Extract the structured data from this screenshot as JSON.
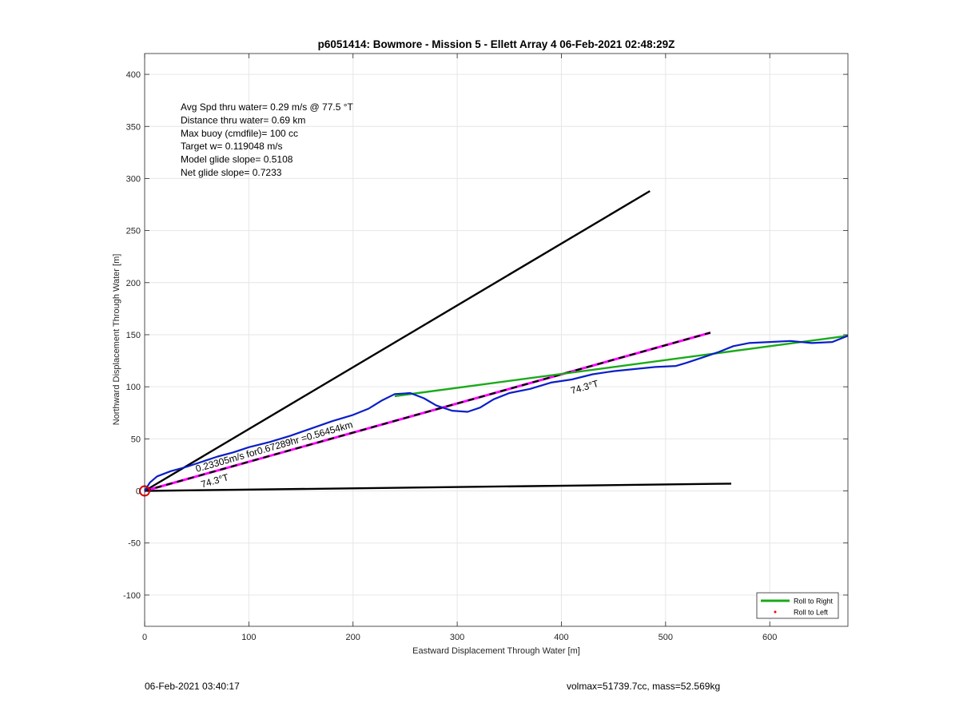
{
  "chart_data": {
    "type": "line",
    "title": "p6051414: Bowmore - Mission 5 - Ellett Array 4 06-Feb-2021 02:48:29Z",
    "xlabel": "Eastward Displacement Through Water [m]",
    "ylabel": "Northward Displacement Through Water [m]",
    "xlim": [
      0,
      675
    ],
    "ylim": [
      -130,
      420
    ],
    "xticks": [
      0,
      100,
      200,
      300,
      400,
      500,
      600
    ],
    "yticks": [
      -100,
      -50,
      0,
      50,
      100,
      150,
      200,
      250,
      300,
      350,
      400
    ],
    "grid": true,
    "legend_position": "bottom-right",
    "legend": [
      {
        "label": "Roll to Right",
        "color": "#1aaa1a",
        "marker": "line"
      },
      {
        "label": "Roll to Left",
        "color": "#ff0000",
        "marker": "dot"
      }
    ],
    "info_lines": [
      "Avg Spd thru water=  0.29 m/s @  77.5 °T",
      "Distance thru water=  0.69 km",
      "Max buoy (cmdfile)= 100 cc",
      "Target w= 0.119048 m/s",
      "Model glide slope= 0.5108",
      "Net glide slope= 0.7233"
    ],
    "annotations": [
      {
        "text": "0.23305m/s for0.67289hr =0.56454km",
        "x": 50,
        "y": 18,
        "angle_deg": 16
      },
      {
        "text": "74.3°T",
        "x": 55,
        "y": 3,
        "angle_deg": 16
      },
      {
        "text": "74.3°T",
        "x": 410,
        "y": 93,
        "angle_deg": 16
      }
    ],
    "series": [
      {
        "color": "#000000",
        "style": "solid",
        "x": [
          0,
          485
        ],
        "y": [
          0,
          288
        ]
      },
      {
        "color": "#000000",
        "style": "solid",
        "x": [
          0,
          563
        ],
        "y": [
          0,
          7
        ]
      },
      {
        "color": "#000000",
        "style": "dash-magenta",
        "x": [
          0,
          543
        ],
        "y": [
          0,
          152
        ]
      },
      {
        "color": "#1aaa1a",
        "style": "solid",
        "x": [
          240,
          675
        ],
        "y": [
          91,
          149
        ]
      },
      {
        "color": "#0a1ec8",
        "style": "solid",
        "x": [
          0,
          5,
          12,
          25,
          40,
          55,
          70,
          85,
          100,
          120,
          140,
          160,
          180,
          200,
          215,
          228,
          240,
          255,
          268,
          280,
          295,
          310,
          322,
          335,
          350,
          370,
          390,
          410,
          430,
          450,
          470,
          490,
          510,
          520,
          535,
          550,
          565,
          580,
          600,
          620,
          640,
          660,
          675
        ],
        "y": [
          0,
          8,
          14,
          19,
          23,
          28,
          33,
          37,
          42,
          47,
          53,
          60,
          67,
          73,
          79,
          87,
          93,
          94,
          89,
          82,
          77,
          76,
          80,
          88,
          94,
          98,
          104,
          107,
          112,
          115,
          117,
          119,
          120,
          123,
          128,
          133,
          139,
          142,
          143,
          144,
          142,
          143,
          149
        ]
      }
    ]
  },
  "footer": {
    "left": "06-Feb-2021 03:40:17",
    "right": "volmax=51739.7cc, mass=52.569kg"
  }
}
